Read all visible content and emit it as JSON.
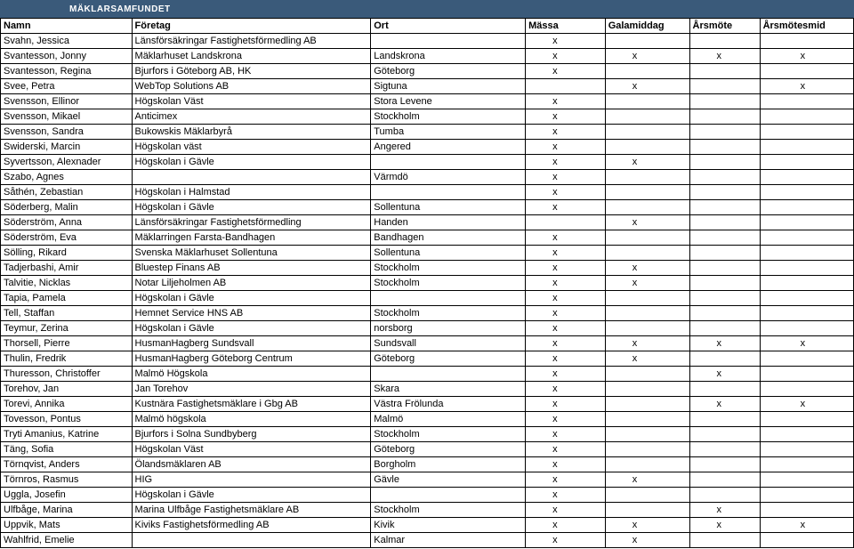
{
  "header": {
    "brand": "MÄKLARSAMFUNDET"
  },
  "columns": [
    {
      "key": "namn",
      "label": "Namn",
      "class": "col-namn"
    },
    {
      "key": "foretag",
      "label": "Företag",
      "class": "col-foretag"
    },
    {
      "key": "ort",
      "label": "Ort",
      "class": "col-ort"
    },
    {
      "key": "massa",
      "label": "Mässa",
      "class": "col-massa"
    },
    {
      "key": "gala",
      "label": "Galamiddag",
      "class": "col-gala"
    },
    {
      "key": "arsmote",
      "label": "Årsmöte",
      "class": "col-arsmote"
    },
    {
      "key": "arsmotesmid",
      "label": "Årsmötesmid",
      "class": "col-arsmotesmid"
    }
  ],
  "rows": [
    {
      "namn": "Svahn, Jessica",
      "foretag": "Länsförsäkringar Fastighetsförmedling AB",
      "ort": "",
      "massa": "x",
      "gala": "",
      "arsmote": "",
      "arsmotesmid": ""
    },
    {
      "namn": "Svantesson, Jonny",
      "foretag": "Mäklarhuset Landskrona",
      "ort": "Landskrona",
      "massa": "x",
      "gala": "x",
      "arsmote": "x",
      "arsmotesmid": "x"
    },
    {
      "namn": "Svantesson, Regina",
      "foretag": "Bjurfors i Göteborg AB, HK",
      "ort": "Göteborg",
      "massa": "x",
      "gala": "",
      "arsmote": "",
      "arsmotesmid": ""
    },
    {
      "namn": "Svee, Petra",
      "foretag": "WebTop Solutions AB",
      "ort": "Sigtuna",
      "massa": "",
      "gala": "x",
      "arsmote": "",
      "arsmotesmid": "x"
    },
    {
      "namn": "Svensson, Ellinor",
      "foretag": "Högskolan Väst",
      "ort": "Stora Levene",
      "massa": "x",
      "gala": "",
      "arsmote": "",
      "arsmotesmid": ""
    },
    {
      "namn": "Svensson, Mikael",
      "foretag": "Anticimex",
      "ort": "Stockholm",
      "massa": "x",
      "gala": "",
      "arsmote": "",
      "arsmotesmid": ""
    },
    {
      "namn": "Svensson, Sandra",
      "foretag": "Bukowskis Mäklarbyrå",
      "ort": "Tumba",
      "massa": "x",
      "gala": "",
      "arsmote": "",
      "arsmotesmid": ""
    },
    {
      "namn": "Swiderski, Marcin",
      "foretag": "Högskolan väst",
      "ort": "Angered",
      "massa": "x",
      "gala": "",
      "arsmote": "",
      "arsmotesmid": ""
    },
    {
      "namn": "Syvertsson, Alexnader",
      "foretag": "Högskolan i Gävle",
      "ort": "",
      "massa": "x",
      "gala": "x",
      "arsmote": "",
      "arsmotesmid": ""
    },
    {
      "namn": "Szabo, Agnes",
      "foretag": "",
      "ort": "Värmdö",
      "massa": "x",
      "gala": "",
      "arsmote": "",
      "arsmotesmid": ""
    },
    {
      "namn": "Såthén, Zebastian",
      "foretag": "Högskolan i Halmstad",
      "ort": "",
      "massa": "x",
      "gala": "",
      "arsmote": "",
      "arsmotesmid": ""
    },
    {
      "namn": "Söderberg, Malin",
      "foretag": "Högskolan i Gävle",
      "ort": "Sollentuna",
      "massa": "x",
      "gala": "",
      "arsmote": "",
      "arsmotesmid": ""
    },
    {
      "namn": "Söderström, Anna",
      "foretag": "Länsförsäkringar Fastighetsförmedling",
      "ort": "Handen",
      "massa": "",
      "gala": "x",
      "arsmote": "",
      "arsmotesmid": ""
    },
    {
      "namn": "Söderström, Eva",
      "foretag": "Mäklarringen Farsta-Bandhagen",
      "ort": "Bandhagen",
      "massa": "x",
      "gala": "",
      "arsmote": "",
      "arsmotesmid": ""
    },
    {
      "namn": "Sölling, Rikard",
      "foretag": "Svenska Mäklarhuset Sollentuna",
      "ort": "Sollentuna",
      "massa": "x",
      "gala": "",
      "arsmote": "",
      "arsmotesmid": ""
    },
    {
      "namn": "Tadjerbashi, Amir",
      "foretag": "Bluestep Finans AB",
      "ort": "Stockholm",
      "massa": "x",
      "gala": "x",
      "arsmote": "",
      "arsmotesmid": ""
    },
    {
      "namn": "Talvitie, Nicklas",
      "foretag": "Notar Liljeholmen AB",
      "ort": "Stockholm",
      "massa": "x",
      "gala": "x",
      "arsmote": "",
      "arsmotesmid": ""
    },
    {
      "namn": "Tapia, Pamela",
      "foretag": "Högskolan i Gävle",
      "ort": "",
      "massa": "x",
      "gala": "",
      "arsmote": "",
      "arsmotesmid": ""
    },
    {
      "namn": "Tell, Staffan",
      "foretag": "Hemnet Service HNS AB",
      "ort": "Stockholm",
      "massa": "x",
      "gala": "",
      "arsmote": "",
      "arsmotesmid": ""
    },
    {
      "namn": "Teymur, Zerina",
      "foretag": "Högskolan i Gävle",
      "ort": "norsborg",
      "massa": "x",
      "gala": "",
      "arsmote": "",
      "arsmotesmid": ""
    },
    {
      "namn": "Thorsell, Pierre",
      "foretag": "HusmanHagberg Sundsvall",
      "ort": "Sundsvall",
      "massa": "x",
      "gala": "x",
      "arsmote": "x",
      "arsmotesmid": "x"
    },
    {
      "namn": "Thulin, Fredrik",
      "foretag": "HusmanHagberg Göteborg Centrum",
      "ort": "Göteborg",
      "massa": "x",
      "gala": "x",
      "arsmote": "",
      "arsmotesmid": ""
    },
    {
      "namn": "Thuresson, Christoffer",
      "foretag": "Malmö Högskola",
      "ort": "",
      "massa": "x",
      "gala": "",
      "arsmote": "x",
      "arsmotesmid": ""
    },
    {
      "namn": "Torehov, Jan",
      "foretag": "Jan Torehov",
      "ort": "Skara",
      "massa": "x",
      "gala": "",
      "arsmote": "",
      "arsmotesmid": ""
    },
    {
      "namn": "Torevi, Annika",
      "foretag": "Kustnära Fastighetsmäklare i Gbg AB",
      "ort": "Västra Frölunda",
      "massa": "x",
      "gala": "",
      "arsmote": "x",
      "arsmotesmid": "x"
    },
    {
      "namn": "Tovesson, Pontus",
      "foretag": "Malmö högskola",
      "ort": "Malmö",
      "massa": "x",
      "gala": "",
      "arsmote": "",
      "arsmotesmid": ""
    },
    {
      "namn": "Tryti Amanius, Katrine",
      "foretag": "Bjurfors i Solna Sundbyberg",
      "ort": "Stockholm",
      "massa": "x",
      "gala": "",
      "arsmote": "",
      "arsmotesmid": ""
    },
    {
      "namn": "Täng, Sofia",
      "foretag": "Högskolan Väst",
      "ort": "Göteborg",
      "massa": "x",
      "gala": "",
      "arsmote": "",
      "arsmotesmid": ""
    },
    {
      "namn": "Törnqvist, Anders",
      "foretag": "Ölandsmäklaren AB",
      "ort": "Borgholm",
      "massa": "x",
      "gala": "",
      "arsmote": "",
      "arsmotesmid": ""
    },
    {
      "namn": "Törnros, Rasmus",
      "foretag": "HIG",
      "ort": "Gävle",
      "massa": "x",
      "gala": "x",
      "arsmote": "",
      "arsmotesmid": ""
    },
    {
      "namn": "Uggla, Josefin",
      "foretag": "Högskolan i Gävle",
      "ort": "",
      "massa": "x",
      "gala": "",
      "arsmote": "",
      "arsmotesmid": ""
    },
    {
      "namn": "Ulfbåge, Marina",
      "foretag": "Marina Ulfbåge Fastighetsmäklare AB",
      "ort": "Stockholm",
      "massa": "x",
      "gala": "",
      "arsmote": "x",
      "arsmotesmid": ""
    },
    {
      "namn": "Uppvik, Mats",
      "foretag": "Kiviks Fastighetsförmedling AB",
      "ort": "Kivik",
      "massa": "x",
      "gala": "x",
      "arsmote": "x",
      "arsmotesmid": "x"
    },
    {
      "namn": "Wahlfrid, Emelie",
      "foretag": "",
      "ort": "Kalmar",
      "massa": "x",
      "gala": "x",
      "arsmote": "",
      "arsmotesmid": ""
    }
  ]
}
